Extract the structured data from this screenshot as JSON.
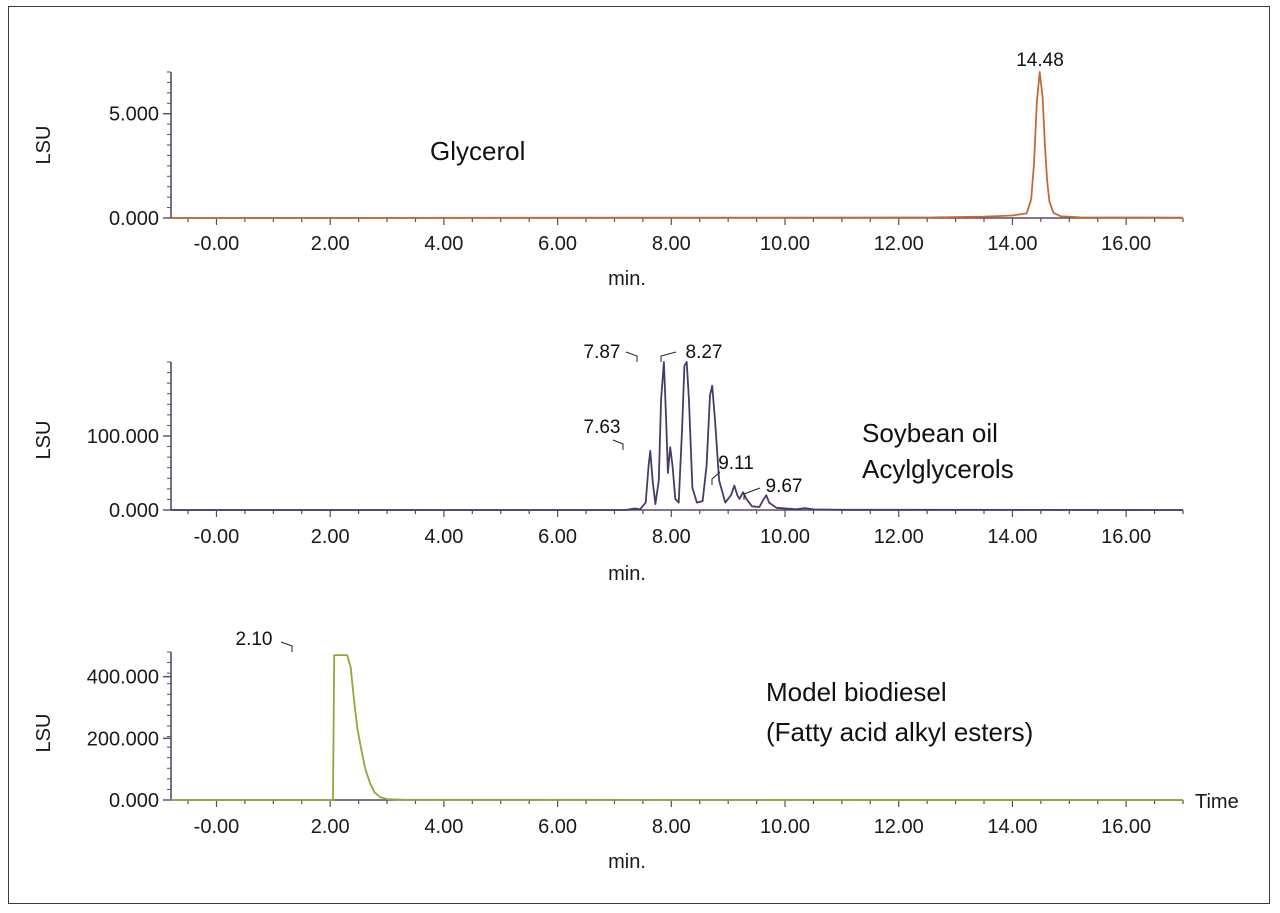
{
  "chart_data": [
    {
      "type": "line",
      "annotation": [
        "Glycerol"
      ],
      "xlabel": "min.",
      "ylabel": "LSU",
      "xlim": [
        -0.8,
        17.0
      ],
      "ylim": [
        0,
        7000
      ],
      "x_ticks": [
        "-0.00",
        "2.00",
        "4.00",
        "6.00",
        "8.00",
        "10.00",
        "12.00",
        "14.00",
        "16.00"
      ],
      "y_ticks": [
        {
          "value": 0,
          "label": "0.000"
        },
        {
          "value": 5000,
          "label": "5.000"
        }
      ],
      "peak_labels": [
        {
          "x": 14.48,
          "y": 7000,
          "label": "14.48"
        }
      ],
      "color": "#c46a33",
      "series": [
        {
          "points": [
            [
              -0.8,
              0
            ],
            [
              12.5,
              25
            ],
            [
              13.5,
              60
            ],
            [
              14.0,
              120
            ],
            [
              14.25,
              220
            ],
            [
              14.33,
              900
            ],
            [
              14.38,
              2600
            ],
            [
              14.43,
              5600
            ],
            [
              14.48,
              7000
            ],
            [
              14.53,
              5800
            ],
            [
              14.57,
              3600
            ],
            [
              14.61,
              1800
            ],
            [
              14.65,
              800
            ],
            [
              14.72,
              250
            ],
            [
              14.85,
              80
            ],
            [
              15.2,
              30
            ],
            [
              17.0,
              15
            ]
          ]
        }
      ]
    },
    {
      "type": "line",
      "annotation": [
        "Soybean oil",
        "Acylglycerols"
      ],
      "xlabel": "min.",
      "ylabel": "LSU",
      "xlim": [
        -0.8,
        17.0
      ],
      "ylim": [
        0,
        200000
      ],
      "x_ticks": [
        "-0.00",
        "2.00",
        "4.00",
        "6.00",
        "8.00",
        "10.00",
        "12.00",
        "14.00",
        "16.00"
      ],
      "y_ticks": [
        {
          "value": 0,
          "label": "0.000"
        },
        {
          "value": 100000,
          "label": "100.000"
        }
      ],
      "peak_labels": [
        {
          "x": 7.63,
          "y": 80000,
          "label": "7.63"
        },
        {
          "x": 7.87,
          "y": 200000,
          "label": "7.87"
        },
        {
          "x": 8.27,
          "y": 200000,
          "label": "8.27"
        },
        {
          "x": 9.11,
          "y": 33000,
          "label": "9.11"
        },
        {
          "x": 9.67,
          "y": 20000,
          "label": "9.67"
        }
      ],
      "color": "#4a3a6a",
      "series": [
        {
          "points": [
            [
              -0.8,
              0
            ],
            [
              7.2,
              0
            ],
            [
              7.35,
              2000
            ],
            [
              7.45,
              1000
            ],
            [
              7.55,
              10000
            ],
            [
              7.6,
              60000
            ],
            [
              7.63,
              80000
            ],
            [
              7.67,
              40000
            ],
            [
              7.72,
              8000
            ],
            [
              7.78,
              40000
            ],
            [
              7.82,
              150000
            ],
            [
              7.87,
              200000
            ],
            [
              7.91,
              120000
            ],
            [
              7.94,
              50000
            ],
            [
              7.98,
              85000
            ],
            [
              8.02,
              60000
            ],
            [
              8.07,
              15000
            ],
            [
              8.13,
              10000
            ],
            [
              8.19,
              110000
            ],
            [
              8.23,
              195000
            ],
            [
              8.27,
              200000
            ],
            [
              8.31,
              150000
            ],
            [
              8.37,
              30000
            ],
            [
              8.45,
              10000
            ],
            [
              8.55,
              12000
            ],
            [
              8.62,
              60000
            ],
            [
              8.68,
              155000
            ],
            [
              8.72,
              168000
            ],
            [
              8.77,
              120000
            ],
            [
              8.84,
              40000
            ],
            [
              8.95,
              10000
            ],
            [
              9.05,
              20000
            ],
            [
              9.11,
              33000
            ],
            [
              9.16,
              20000
            ],
            [
              9.2,
              15000
            ],
            [
              9.26,
              24000
            ],
            [
              9.32,
              15000
            ],
            [
              9.42,
              5000
            ],
            [
              9.55,
              4000
            ],
            [
              9.62,
              14000
            ],
            [
              9.67,
              20000
            ],
            [
              9.72,
              10000
            ],
            [
              9.85,
              3000
            ],
            [
              10.2,
              1000
            ],
            [
              10.35,
              2500
            ],
            [
              10.5,
              800
            ],
            [
              11.0,
              300
            ],
            [
              17.0,
              0
            ]
          ]
        }
      ]
    },
    {
      "type": "line",
      "annotation": [
        "Model biodiesel",
        "(Fatty acid alkyl esters)"
      ],
      "xlabel": "min.",
      "ylabel": "LSU",
      "x_end_label": "Time",
      "xlim": [
        -0.8,
        17.0
      ],
      "ylim": [
        0,
        480000
      ],
      "x_ticks": [
        "-0.00",
        "2.00",
        "4.00",
        "6.00",
        "8.00",
        "10.00",
        "12.00",
        "14.00",
        "16.00"
      ],
      "y_ticks": [
        {
          "value": 0,
          "label": "0.000"
        },
        {
          "value": 200000,
          "label": "200.000"
        },
        {
          "value": 400000,
          "label": "400.000"
        }
      ],
      "peak_labels": [
        {
          "x": 2.1,
          "y": 470000,
          "label": "2.10"
        }
      ],
      "color": "#9aa23a",
      "series": [
        {
          "points": [
            [
              -0.8,
              0
            ],
            [
              2.05,
              0
            ],
            [
              2.07,
              470000
            ],
            [
              2.3,
              470000
            ],
            [
              2.36,
              430000
            ],
            [
              2.42,
              320000
            ],
            [
              2.48,
              230000
            ],
            [
              2.55,
              160000
            ],
            [
              2.62,
              100000
            ],
            [
              2.7,
              55000
            ],
            [
              2.78,
              25000
            ],
            [
              2.88,
              9000
            ],
            [
              3.0,
              3000
            ],
            [
              3.3,
              800
            ],
            [
              17.0,
              0
            ]
          ]
        }
      ]
    }
  ]
}
